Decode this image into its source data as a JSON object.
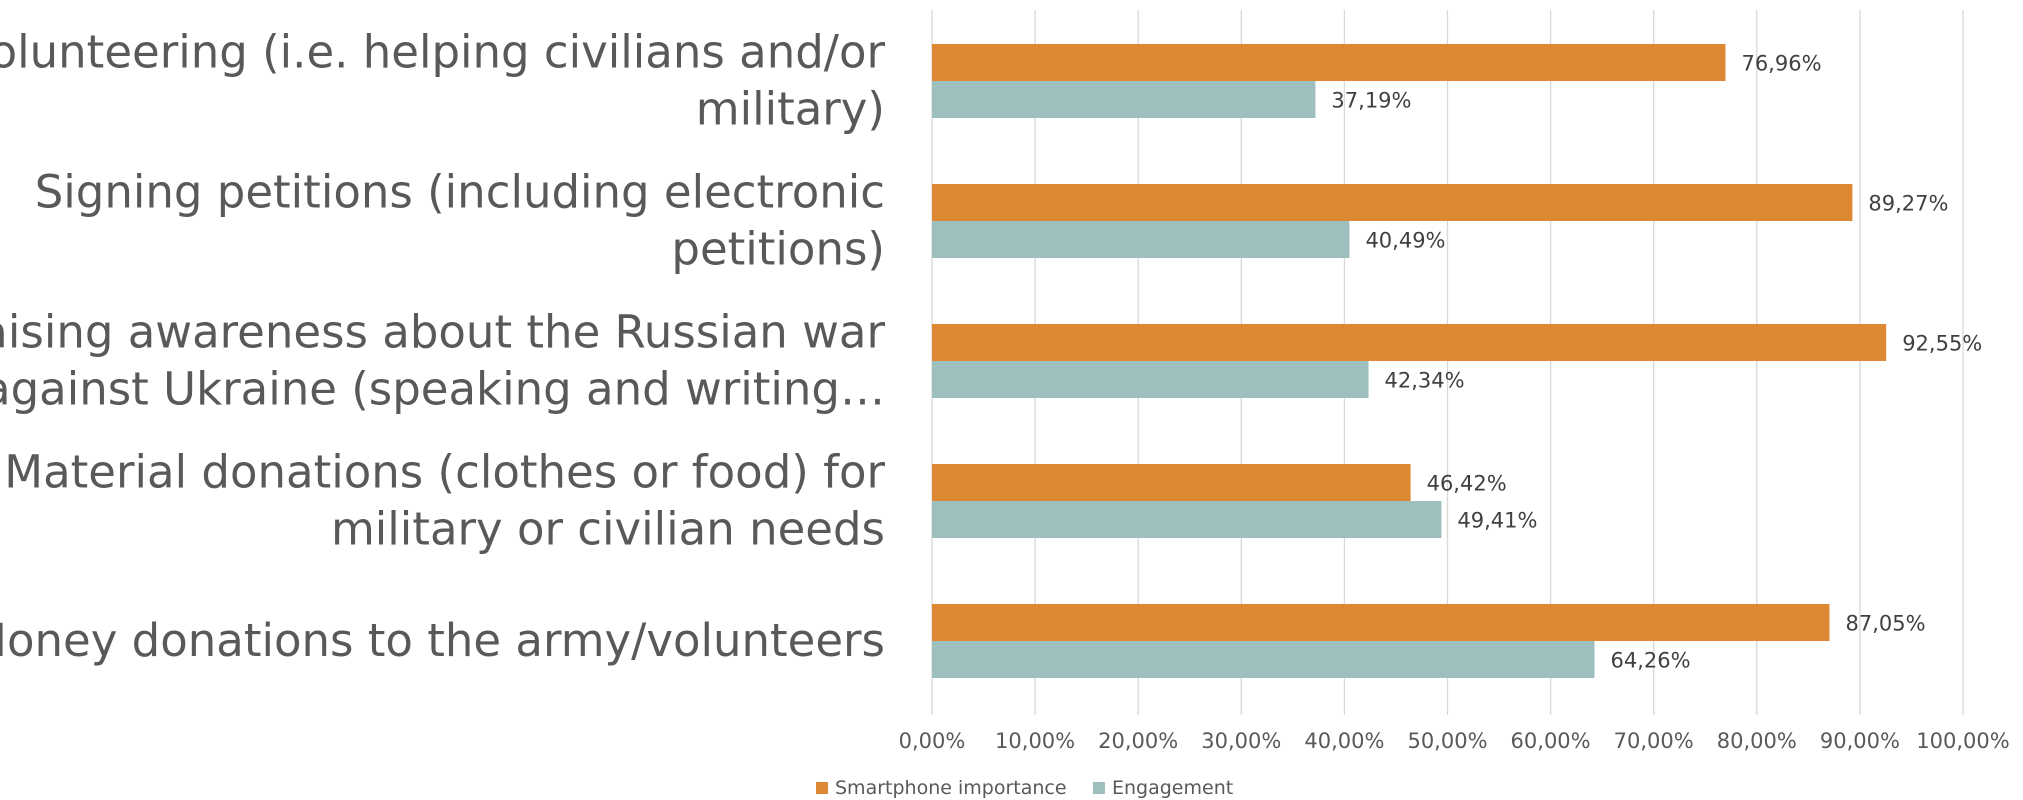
{
  "chart_data": {
    "type": "bar",
    "orientation": "horizontal",
    "categories": [
      [
        "Volunteering (i.e. helping civilians and/or",
        "military)"
      ],
      [
        "Signing petitions (including electronic",
        "petitions)"
      ],
      [
        "Raising awareness about the Russian war",
        "against Ukraine (speaking and writing…"
      ],
      [
        "Material donations (clothes or food) for",
        "military or civilian needs"
      ],
      [
        "Money donations to the army/volunteers"
      ]
    ],
    "series": [
      {
        "name": "Smartphone importance",
        "color": "#DD8833",
        "values": [
          76.96,
          89.27,
          92.55,
          46.42,
          87.05
        ],
        "labels": [
          "76,96%",
          "89,27%",
          "92,55%",
          "46,42%",
          "87,05%"
        ]
      },
      {
        "name": "Engagement",
        "color": "#9DBFBD",
        "values": [
          37.19,
          40.49,
          42.34,
          49.41,
          64.26
        ],
        "labels": [
          "37,19%",
          "40,49%",
          "42,34%",
          "49,41%",
          "64,26%"
        ]
      }
    ],
    "xlim": [
      0,
      100
    ],
    "xticks": [
      0,
      10,
      20,
      30,
      40,
      50,
      60,
      70,
      80,
      90,
      100
    ],
    "xtick_labels": [
      "0,00%",
      "10,00%",
      "20,00%",
      "30,00%",
      "40,00%",
      "50,00%",
      "60,00%",
      "70,00%",
      "80,00%",
      "90,00%",
      "100,00%"
    ],
    "grid": true,
    "legend": "bottom"
  }
}
